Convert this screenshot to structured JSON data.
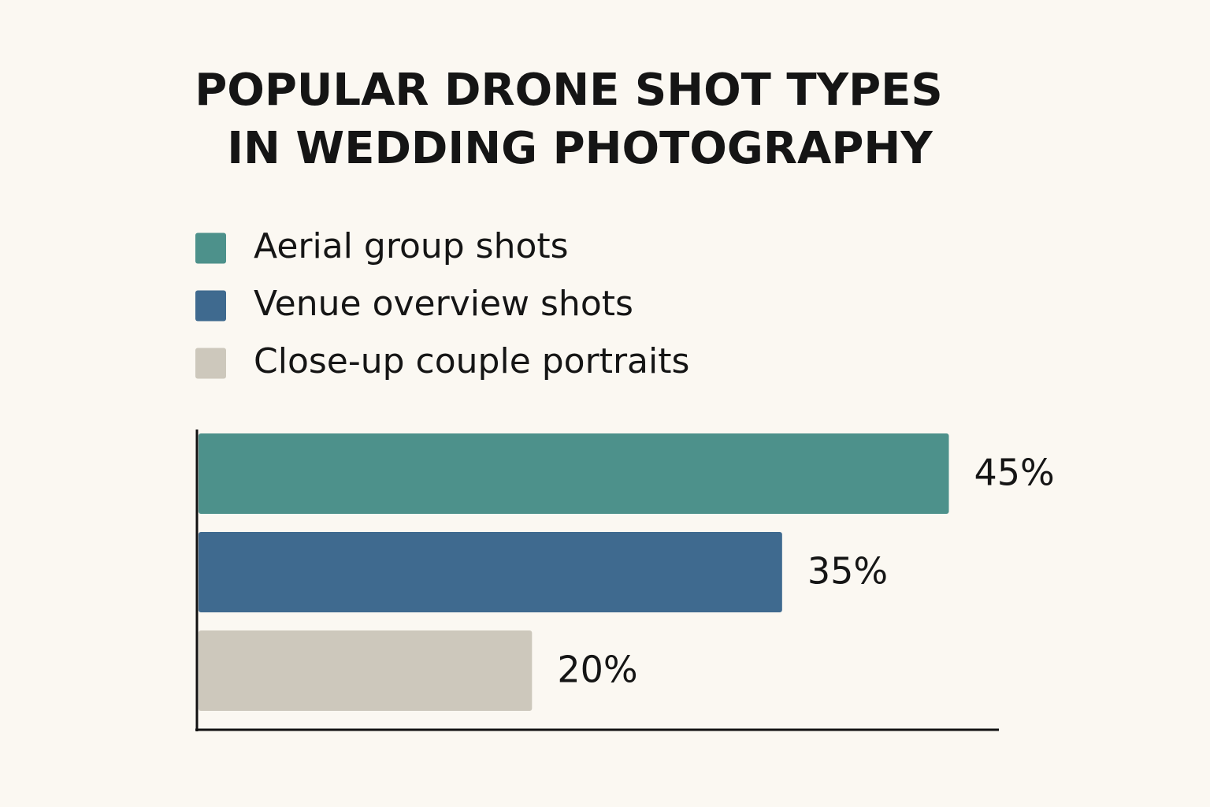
{
  "chart_data": {
    "type": "bar",
    "orientation": "horizontal",
    "title": [
      "POPULAR DRONE SHOT TYPES",
      "IN WEDDING PHOTOGRAPHY"
    ],
    "categories": [
      "Aerial group shots",
      "Venue overview shots",
      "Close-up couple portraits"
    ],
    "values": [
      45,
      35,
      20
    ],
    "value_labels": [
      "45%",
      "35%",
      "20%"
    ],
    "colors": [
      "#4d918b",
      "#3f6a8f",
      "#cdc8bc"
    ],
    "xlim": [
      0,
      48
    ]
  }
}
